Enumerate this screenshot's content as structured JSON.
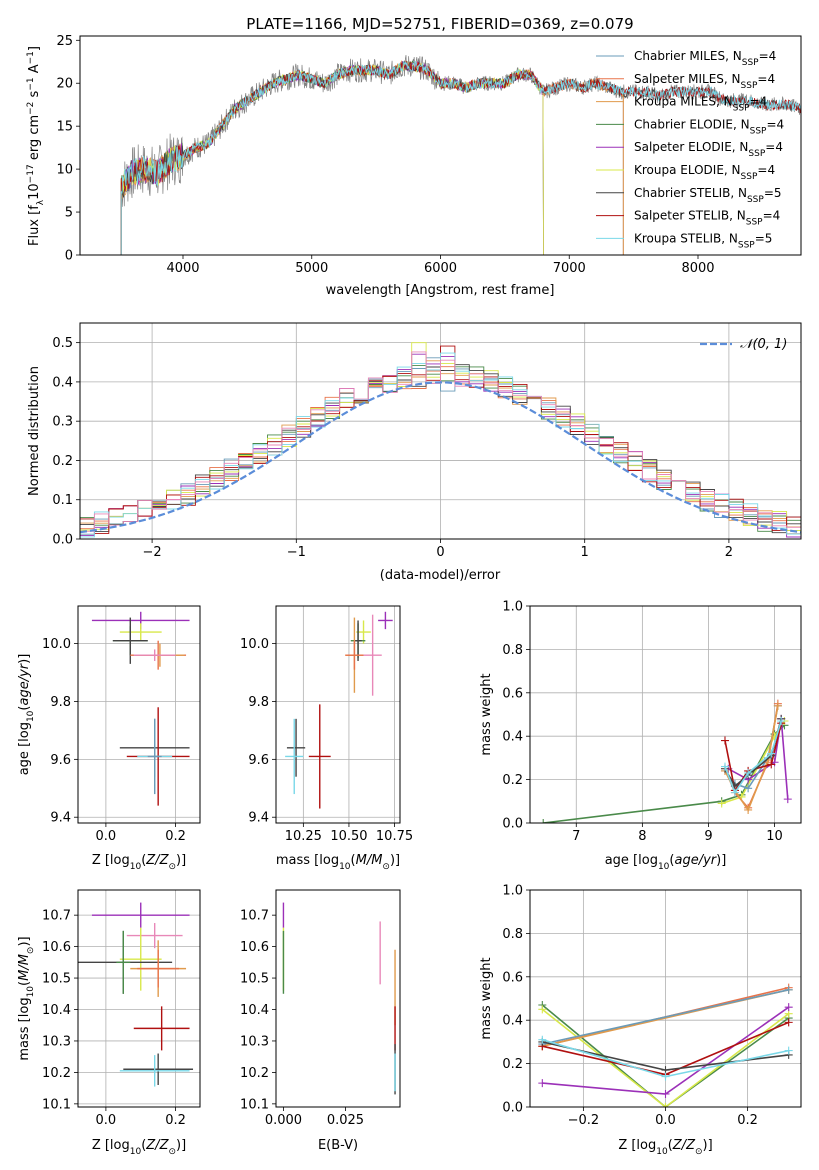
{
  "figure_title": "PLATE=1166, MJD=52751, FIBERID=0369, z=0.079",
  "colors": {
    "Chabrier MILES": "#6a9bb8",
    "Salpeter MILES": "#e8734a",
    "Kroupa MILES": "#e09a4c",
    "Chabrier ELODIE": "#4a8a4a",
    "Salpeter ELODIE": "#9b30b8",
    "Kroupa ELODIE": "#d8e84a",
    "Chabrier STELIB": "#444444",
    "Salpeter STELIB": "#b01010",
    "Kroupa STELIB": "#7ad8e8",
    "pink": "#e888b8",
    "normal": "#5b8dd9",
    "grid": "#b0b0b0"
  },
  "chart_data": [
    {
      "type": "line",
      "title": "PLATE=1166, MJD=52751, FIBERID=0369, z=0.079",
      "xlabel": "wavelength [Angstrom, rest frame]",
      "ylabel_parts": [
        "Flux [f",
        "λ",
        "10",
        "−17",
        " erg cm",
        "−2",
        " s",
        "−1",
        " A",
        "−1",
        "]"
      ],
      "xlim": [
        3200,
        8800
      ],
      "ylim": [
        0,
        25.5
      ],
      "xticks": [
        "4000",
        "5000",
        "6000",
        "7000",
        "8000"
      ],
      "xtick_values": [
        4000,
        5000,
        6000,
        7000,
        8000
      ],
      "yticks": [
        "0",
        "5",
        "10",
        "15",
        "20",
        "25"
      ],
      "ytick_values": [
        0,
        5,
        10,
        15,
        20,
        25
      ],
      "grid": false,
      "legend_position": "top-right",
      "series": [
        {
          "name": "Chabrier MILES, N",
          "sub": "SSP",
          "suffix": "=4",
          "color_key": "Chabrier MILES",
          "end": 7420
        },
        {
          "name": "Salpeter MILES, N",
          "sub": "SSP",
          "suffix": "=4",
          "color_key": "Salpeter MILES",
          "end": 7420
        },
        {
          "name": "Kroupa MILES, N",
          "sub": "SSP",
          "suffix": "=4",
          "color_key": "Kroupa MILES",
          "end": 7420
        },
        {
          "name": "Chabrier ELODIE, N",
          "sub": "SSP",
          "suffix": "=4",
          "color_key": "Chabrier ELODIE",
          "end": 6800
        },
        {
          "name": "Salpeter ELODIE, N",
          "sub": "SSP",
          "suffix": "=4",
          "color_key": "Salpeter ELODIE",
          "end": 6800
        },
        {
          "name": "Kroupa ELODIE, N",
          "sub": "SSP",
          "suffix": "=4",
          "color_key": "Kroupa ELODIE",
          "end": 6800
        },
        {
          "name": "Chabrier STELIB, N",
          "sub": "SSP",
          "suffix": "=5",
          "color_key": "Chabrier STELIB",
          "end": 8800
        },
        {
          "name": "Salpeter STELIB, N",
          "sub": "SSP",
          "suffix": "=4",
          "color_key": "Salpeter STELIB",
          "end": 8800
        },
        {
          "name": "Kroupa STELIB, N",
          "sub": "SSP",
          "suffix": "=5",
          "color_key": "Kroupa STELIB",
          "end": 8800
        }
      ],
      "data_wavelength": [
        3500,
        3600,
        3700,
        3800,
        3900,
        4000,
        4100,
        4200,
        4300,
        4400,
        4500,
        4600,
        4700,
        4800,
        4900,
        5000,
        5100,
        5200,
        5300,
        5400,
        5500,
        5600,
        5700,
        5800,
        5900,
        6000,
        6100,
        6200,
        6300,
        6400,
        6500,
        6600,
        6700,
        6800,
        6900,
        7000,
        7100,
        7200,
        7300,
        7400,
        7500,
        7600,
        7700,
        7800,
        7900,
        8000,
        8100,
        8200,
        8300,
        8400,
        8500,
        8600,
        8700,
        8800
      ],
      "data_flux": [
        7.5,
        9.5,
        10,
        9.5,
        11,
        11.5,
        12.5,
        13,
        15,
        17,
        18,
        19,
        20,
        20.5,
        21,
        20.5,
        20,
        21,
        21.5,
        21.5,
        21.5,
        21,
        22,
        22,
        21.5,
        20,
        20,
        19.5,
        20,
        20,
        20,
        21,
        21,
        19,
        19.5,
        20,
        19.5,
        20,
        19.5,
        19,
        19,
        19,
        18.5,
        19,
        19,
        19,
        19,
        18,
        18,
        18,
        17.5,
        17.5,
        17.5,
        17
      ]
    },
    {
      "type": "step",
      "xlabel": "(data-model)/error",
      "ylabel": "Normed distribution",
      "xlim": [
        -2.5,
        2.5
      ],
      "ylim": [
        0,
        0.55
      ],
      "xticks": [
        "−2",
        "−1",
        "0",
        "1",
        "2"
      ],
      "xtick_values": [
        -2,
        -1,
        0,
        1,
        2
      ],
      "yticks": [
        "0.0",
        "0.1",
        "0.2",
        "0.3",
        "0.4",
        "0.5"
      ],
      "ytick_values": [
        0,
        0.1,
        0.2,
        0.3,
        0.4,
        0.5
      ],
      "grid": true,
      "legend_position": "top-right",
      "legend_label": "𝒩(0, 1)",
      "bin_width": 0.1,
      "bin_start": -2.5
    },
    {
      "type": "scatter",
      "xlabel_parts": [
        "Z [log",
        "10",
        "(",
        "Z/Z",
        "⊙",
        ")]"
      ],
      "ylabel_parts": [
        "age  [log",
        "10",
        "(",
        "age/yr",
        ")]"
      ],
      "xlim": [
        -0.08,
        0.27
      ],
      "ylim": [
        9.38,
        10.13
      ],
      "xticks": [
        "0.0",
        "0.2"
      ],
      "xtick_values": [
        0.0,
        0.2
      ],
      "yticks": [
        "9.4",
        "9.6",
        "9.8",
        "10.0"
      ],
      "ytick_values": [
        9.4,
        9.6,
        9.8,
        10.0
      ],
      "grid": true,
      "points": [
        {
          "x": 0.1,
          "y": 10.08,
          "xerr": 0.14,
          "yerr": 0.03,
          "c": "Salpeter ELODIE"
        },
        {
          "x": 0.1,
          "y": 10.04,
          "xerr": 0.06,
          "yerr": 0.03,
          "c": "Kroupa ELODIE"
        },
        {
          "x": 0.07,
          "y": 10.01,
          "xerr": 0.05,
          "yerr": 0.05,
          "c": "Chabrier ELODIE"
        },
        {
          "x": 0.07,
          "y": 10.01,
          "xerr": 0.05,
          "yerr": 0.08,
          "c": "Chabrier STELIB"
        },
        {
          "x": 0.15,
          "y": 9.96,
          "xerr": 0.08,
          "yerr": 0.05,
          "c": "Salpeter MILES"
        },
        {
          "x": 0.155,
          "y": 9.96,
          "xerr": 0.07,
          "yerr": 0.04,
          "c": "Kroupa MILES"
        },
        {
          "x": 0.14,
          "y": 9.96,
          "xerr": 0.06,
          "yerr": 0.02,
          "c": "pink"
        },
        {
          "x": 0.14,
          "y": 9.64,
          "xerr": 0.1,
          "yerr": 0.1,
          "c": "Chabrier STELIB"
        },
        {
          "x": 0.15,
          "y": 9.61,
          "xerr": 0.09,
          "yerr": 0.17,
          "c": "Salpeter STELIB"
        },
        {
          "x": 0.14,
          "y": 9.61,
          "xerr": 0.05,
          "yerr": 0.13,
          "c": "Kroupa STELIB"
        },
        {
          "x": 0.14,
          "y": 9.61,
          "xerr": 0.02,
          "yerr": 0.13,
          "c": "Chabrier MILES"
        }
      ]
    },
    {
      "type": "scatter",
      "xlabel_parts": [
        "mass [log",
        "10",
        "(",
        "M/M",
        "⊙",
        ")]"
      ],
      "ylabel": "",
      "xlim": [
        10.1,
        10.78
      ],
      "ylim": [
        9.38,
        10.13
      ],
      "xticks": [
        "10.25",
        "10.50",
        "10.75"
      ],
      "xtick_values": [
        10.25,
        10.5,
        10.75
      ],
      "yticks": [
        "9.4",
        "9.6",
        "9.8",
        "10.0"
      ],
      "ytick_values": [
        9.4,
        9.6,
        9.8,
        10.0
      ],
      "grid": true,
      "points": [
        {
          "x": 10.7,
          "y": 10.08,
          "xerr": 0.04,
          "yerr": 0.03,
          "c": "Salpeter ELODIE"
        },
        {
          "x": 10.58,
          "y": 10.04,
          "xerr": 0.04,
          "yerr": 0.04,
          "c": "Kroupa ELODIE"
        },
        {
          "x": 10.55,
          "y": 10.01,
          "xerr": 0.04,
          "yerr": 0.06,
          "c": "Chabrier ELODIE"
        },
        {
          "x": 10.55,
          "y": 10.01,
          "xerr": 0.02,
          "yerr": 0.07,
          "c": "Chabrier STELIB"
        },
        {
          "x": 10.53,
          "y": 9.96,
          "xerr": 0.05,
          "yerr": 0.13,
          "c": "Kroupa MILES"
        },
        {
          "x": 10.53,
          "y": 9.96,
          "xerr": 0.05,
          "yerr": 0.05,
          "c": "Salpeter MILES"
        },
        {
          "x": 10.63,
          "y": 9.96,
          "xerr": 0.05,
          "yerr": 0.14,
          "c": "pink"
        },
        {
          "x": 10.21,
          "y": 9.64,
          "xerr": 0.05,
          "yerr": 0.1,
          "c": "Chabrier STELIB"
        },
        {
          "x": 10.34,
          "y": 9.61,
          "xerr": 0.06,
          "yerr": 0.18,
          "c": "Salpeter STELIB"
        },
        {
          "x": 10.2,
          "y": 9.61,
          "xerr": 0.05,
          "yerr": 0.13,
          "c": "Kroupa STELIB"
        }
      ]
    },
    {
      "type": "line",
      "xlabel_parts": [
        "age  [log",
        "10",
        "(",
        "age/yr",
        ")]"
      ],
      "ylabel": "mass weight",
      "xlim": [
        6.3,
        10.4
      ],
      "ylim": [
        0,
        1.0
      ],
      "xticks": [
        "7",
        "8",
        "9",
        "10"
      ],
      "xtick_values": [
        7,
        8,
        9,
        10
      ],
      "yticks": [
        "0.0",
        "0.2",
        "0.4",
        "0.6",
        "0.8",
        "1.0"
      ],
      "ytick_values": [
        0,
        0.2,
        0.4,
        0.6,
        0.8,
        1.0
      ],
      "grid": true,
      "series": [
        {
          "c": "Chabrier ELODIE",
          "x": [
            6.5,
            9.2,
            9.5,
            10.0,
            10.15
          ],
          "y": [
            0.0,
            0.1,
            0.13,
            0.41,
            0.45
          ]
        },
        {
          "c": "Kroupa ELODIE",
          "x": [
            9.2,
            9.5,
            10.0,
            10.15
          ],
          "y": [
            0.09,
            0.12,
            0.4,
            0.47
          ]
        },
        {
          "c": "Salpeter ELODIE",
          "x": [
            9.3,
            9.6,
            10.0,
            10.1,
            10.2
          ],
          "y": [
            0.25,
            0.2,
            0.28,
            0.48,
            0.11
          ]
        },
        {
          "c": "Chabrier MILES",
          "x": [
            9.25,
            9.4,
            9.6,
            9.9,
            10.05
          ],
          "y": [
            0.24,
            0.18,
            0.16,
            0.3,
            0.54
          ]
        },
        {
          "c": "Salpeter MILES",
          "x": [
            9.25,
            9.4,
            9.6,
            9.9,
            10.05
          ],
          "y": [
            0.25,
            0.14,
            0.07,
            0.28,
            0.55
          ]
        },
        {
          "c": "Kroupa MILES",
          "x": [
            9.25,
            9.4,
            9.6,
            9.9,
            10.05
          ],
          "y": [
            0.24,
            0.15,
            0.06,
            0.29,
            0.54
          ]
        },
        {
          "c": "Salpeter STELIB",
          "x": [
            9.25,
            9.4,
            9.6,
            9.95,
            10.1
          ],
          "y": [
            0.38,
            0.15,
            0.24,
            0.27,
            0.46
          ]
        },
        {
          "c": "Chabrier STELIB",
          "x": [
            9.25,
            9.4,
            9.6,
            9.95,
            10.1
          ],
          "y": [
            0.25,
            0.17,
            0.22,
            0.31,
            0.48
          ]
        },
        {
          "c": "Kroupa STELIB",
          "x": [
            9.25,
            9.4,
            9.6,
            9.95,
            10.1
          ],
          "y": [
            0.26,
            0.14,
            0.23,
            0.32,
            0.47
          ]
        }
      ]
    },
    {
      "type": "scatter",
      "xlabel_parts": [
        "Z [log",
        "10",
        "(",
        "Z/Z",
        "⊙",
        ")]"
      ],
      "ylabel_parts": [
        "mass [log",
        "10",
        "(",
        "M/M",
        "⊙",
        ")]"
      ],
      "xlim": [
        -0.08,
        0.27
      ],
      "ylim": [
        10.09,
        10.78
      ],
      "xticks": [
        "0.0",
        "0.2"
      ],
      "xtick_values": [
        0.0,
        0.2
      ],
      "yticks": [
        "10.1",
        "10.2",
        "10.3",
        "10.4",
        "10.5",
        "10.6",
        "10.7"
      ],
      "ytick_values": [
        10.1,
        10.2,
        10.3,
        10.4,
        10.5,
        10.6,
        10.7
      ],
      "grid": true,
      "points": [
        {
          "x": 0.1,
          "y": 10.7,
          "xerr": 0.14,
          "yerr": 0.04,
          "c": "Salpeter ELODIE"
        },
        {
          "x": 0.14,
          "y": 10.635,
          "xerr": 0.08,
          "yerr": 0.04,
          "c": "pink"
        },
        {
          "x": 0.1,
          "y": 10.56,
          "xerr": 0.06,
          "yerr": 0.1,
          "c": "Kroupa ELODIE"
        },
        {
          "x": 0.05,
          "y": 10.55,
          "xerr": 0.14,
          "yerr": 0.1,
          "c": "Chabrier STELIB"
        },
        {
          "x": 0.05,
          "y": 10.55,
          "xerr": 0.02,
          "yerr": 0.1,
          "c": "Chabrier ELODIE"
        },
        {
          "x": 0.15,
          "y": 10.53,
          "xerr": 0.08,
          "yerr": 0.09,
          "c": "Kroupa MILES"
        },
        {
          "x": 0.15,
          "y": 10.53,
          "xerr": 0.06,
          "yerr": 0.06,
          "c": "Salpeter MILES"
        },
        {
          "x": 0.16,
          "y": 10.34,
          "xerr": 0.08,
          "yerr": 0.07,
          "c": "Salpeter STELIB"
        },
        {
          "x": 0.15,
          "y": 10.21,
          "xerr": 0.1,
          "yerr": 0.05,
          "c": "Chabrier STELIB"
        },
        {
          "x": 0.14,
          "y": 10.205,
          "xerr": 0.1,
          "yerr": 0.05,
          "c": "Kroupa STELIB"
        }
      ]
    },
    {
      "type": "scatter",
      "xlabel": "E(B-V)",
      "ylabel": "",
      "xlim": [
        -0.003,
        0.047
      ],
      "ylim": [
        10.09,
        10.78
      ],
      "xticks": [
        "0.000",
        "0.025"
      ],
      "xtick_values": [
        0.0,
        0.025
      ],
      "yticks": [
        "10.1",
        "10.2",
        "10.3",
        "10.4",
        "10.5",
        "10.6",
        "10.7"
      ],
      "ytick_values": [
        10.1,
        10.2,
        10.3,
        10.4,
        10.5,
        10.6,
        10.7
      ],
      "grid": false,
      "points": [
        {
          "x": 0.0,
          "y": 10.7,
          "xerr": 0,
          "yerr": 0.04,
          "c": "Salpeter ELODIE"
        },
        {
          "x": 0.0,
          "y": 10.56,
          "xerr": 0,
          "yerr": 0.1,
          "c": "Kroupa ELODIE"
        },
        {
          "x": 0.0,
          "y": 10.55,
          "xerr": 0,
          "yerr": 0.1,
          "c": "Chabrier ELODIE"
        },
        {
          "x": 0.039,
          "y": 10.58,
          "xerr": 0,
          "yerr": 0.1,
          "c": "pink"
        },
        {
          "x": 0.045,
          "y": 10.47,
          "xerr": 0,
          "yerr": 0.12,
          "c": "Kroupa MILES"
        },
        {
          "x": 0.045,
          "y": 10.34,
          "xerr": 0,
          "yerr": 0.07,
          "c": "Salpeter STELIB"
        },
        {
          "x": 0.045,
          "y": 10.21,
          "xerr": 0,
          "yerr": 0.08,
          "c": "Chabrier STELIB"
        },
        {
          "x": 0.045,
          "y": 10.2,
          "xerr": 0,
          "yerr": 0.06,
          "c": "Kroupa STELIB"
        }
      ]
    },
    {
      "type": "line",
      "xlabel_parts": [
        "Z [log",
        "10",
        "(",
        "Z/Z",
        "⊙",
        ")]"
      ],
      "ylabel": "mass weight",
      "xlim": [
        -0.33,
        0.33
      ],
      "ylim": [
        0,
        1.0
      ],
      "xticks": [
        "−0.2",
        "0.0",
        "0.2"
      ],
      "xtick_values": [
        -0.2,
        0.0,
        0.2
      ],
      "yticks": [
        "0.0",
        "0.2",
        "0.4",
        "0.6",
        "0.8",
        "1.0"
      ],
      "ytick_values": [
        0,
        0.2,
        0.4,
        0.6,
        0.8,
        1.0
      ],
      "grid": true,
      "series": [
        {
          "c": "Chabrier ELODIE",
          "x": [
            -0.3,
            0.0,
            0.3
          ],
          "y": [
            0.47,
            0.0,
            0.41
          ]
        },
        {
          "c": "Kroupa ELODIE",
          "x": [
            -0.3,
            0.0,
            0.3
          ],
          "y": [
            0.45,
            0.0,
            0.43
          ]
        },
        {
          "c": "Salpeter ELODIE",
          "x": [
            -0.3,
            0.0,
            0.3
          ],
          "y": [
            0.11,
            0.06,
            0.46
          ]
        },
        {
          "c": "Salpeter MILES",
          "x": [
            -0.3,
            0.3
          ],
          "y": [
            0.28,
            0.55
          ]
        },
        {
          "c": "Kroupa MILES",
          "x": [
            -0.3,
            0.3
          ],
          "y": [
            0.28,
            0.54
          ]
        },
        {
          "c": "Chabrier MILES",
          "x": [
            -0.3,
            0.3
          ],
          "y": [
            0.29,
            0.54
          ]
        },
        {
          "c": "Salpeter STELIB",
          "x": [
            -0.3,
            0.0,
            0.3
          ],
          "y": [
            0.28,
            0.15,
            0.39
          ]
        },
        {
          "c": "Chabrier STELIB",
          "x": [
            -0.3,
            0.0,
            0.3
          ],
          "y": [
            0.3,
            0.17,
            0.24
          ]
        },
        {
          "c": "Kroupa STELIB",
          "x": [
            -0.3,
            0.0,
            0.3
          ],
          "y": [
            0.31,
            0.14,
            0.26
          ]
        }
      ]
    }
  ]
}
